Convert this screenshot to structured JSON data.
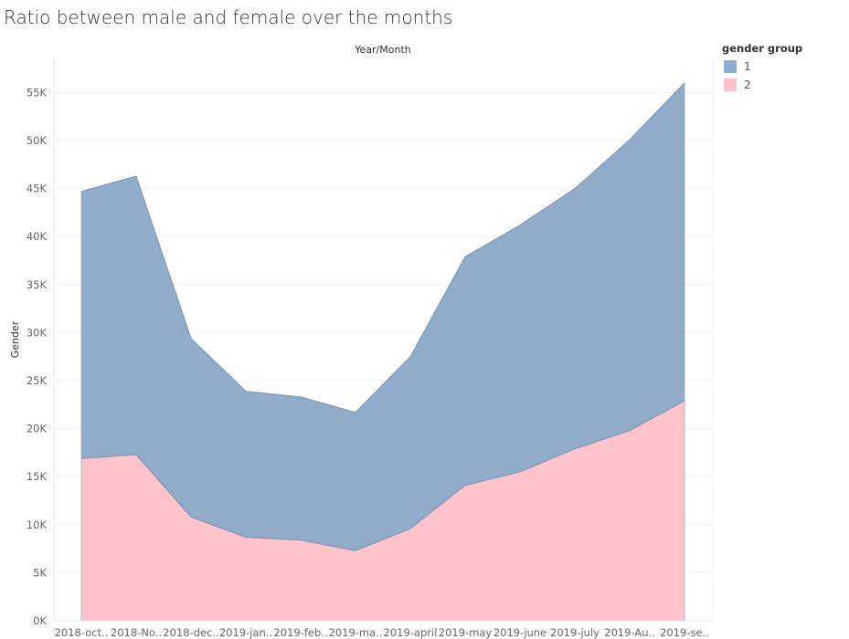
{
  "title": "Ratio between male and female over the months",
  "chart_data": {
    "type": "area",
    "stacked": true,
    "title": "Ratio between male and female over the months",
    "xlabel": "Year/Month",
    "ylabel": "Gender",
    "ylim": [
      0,
      58000
    ],
    "yticks": [
      0,
      5000,
      10000,
      15000,
      20000,
      25000,
      30000,
      35000,
      40000,
      45000,
      50000,
      55000
    ],
    "ytick_labels": [
      "0K",
      "5K",
      "10K",
      "15K",
      "20K",
      "25K",
      "30K",
      "35K",
      "40K",
      "45K",
      "50K",
      "55K"
    ],
    "categories": [
      "2018-oct..",
      "2018-No..",
      "2018-dec..",
      "2019-jan..",
      "2019-feb..",
      "2019-ma..",
      "2019-april",
      "2019-may",
      "2019-june",
      "2019-july",
      "2019-Au..",
      "2019-se.."
    ],
    "grid": true,
    "legend_title": "gender group",
    "legend_position": "right",
    "series": [
      {
        "name": "2",
        "color": "#ffc3cb",
        "line_color": "#7a8fb0",
        "values": [
          16900,
          17300,
          10800,
          8700,
          8400,
          7300,
          9600,
          14100,
          15500,
          17900,
          19800,
          22900
        ]
      },
      {
        "name": "1",
        "color": "#90acc9",
        "line_color": "#7a95b8",
        "values": [
          27800,
          29000,
          18600,
          15200,
          14900,
          14400,
          17900,
          23800,
          25700,
          27100,
          30300,
          33100
        ]
      }
    ],
    "legend_order": [
      "1",
      "2"
    ]
  }
}
